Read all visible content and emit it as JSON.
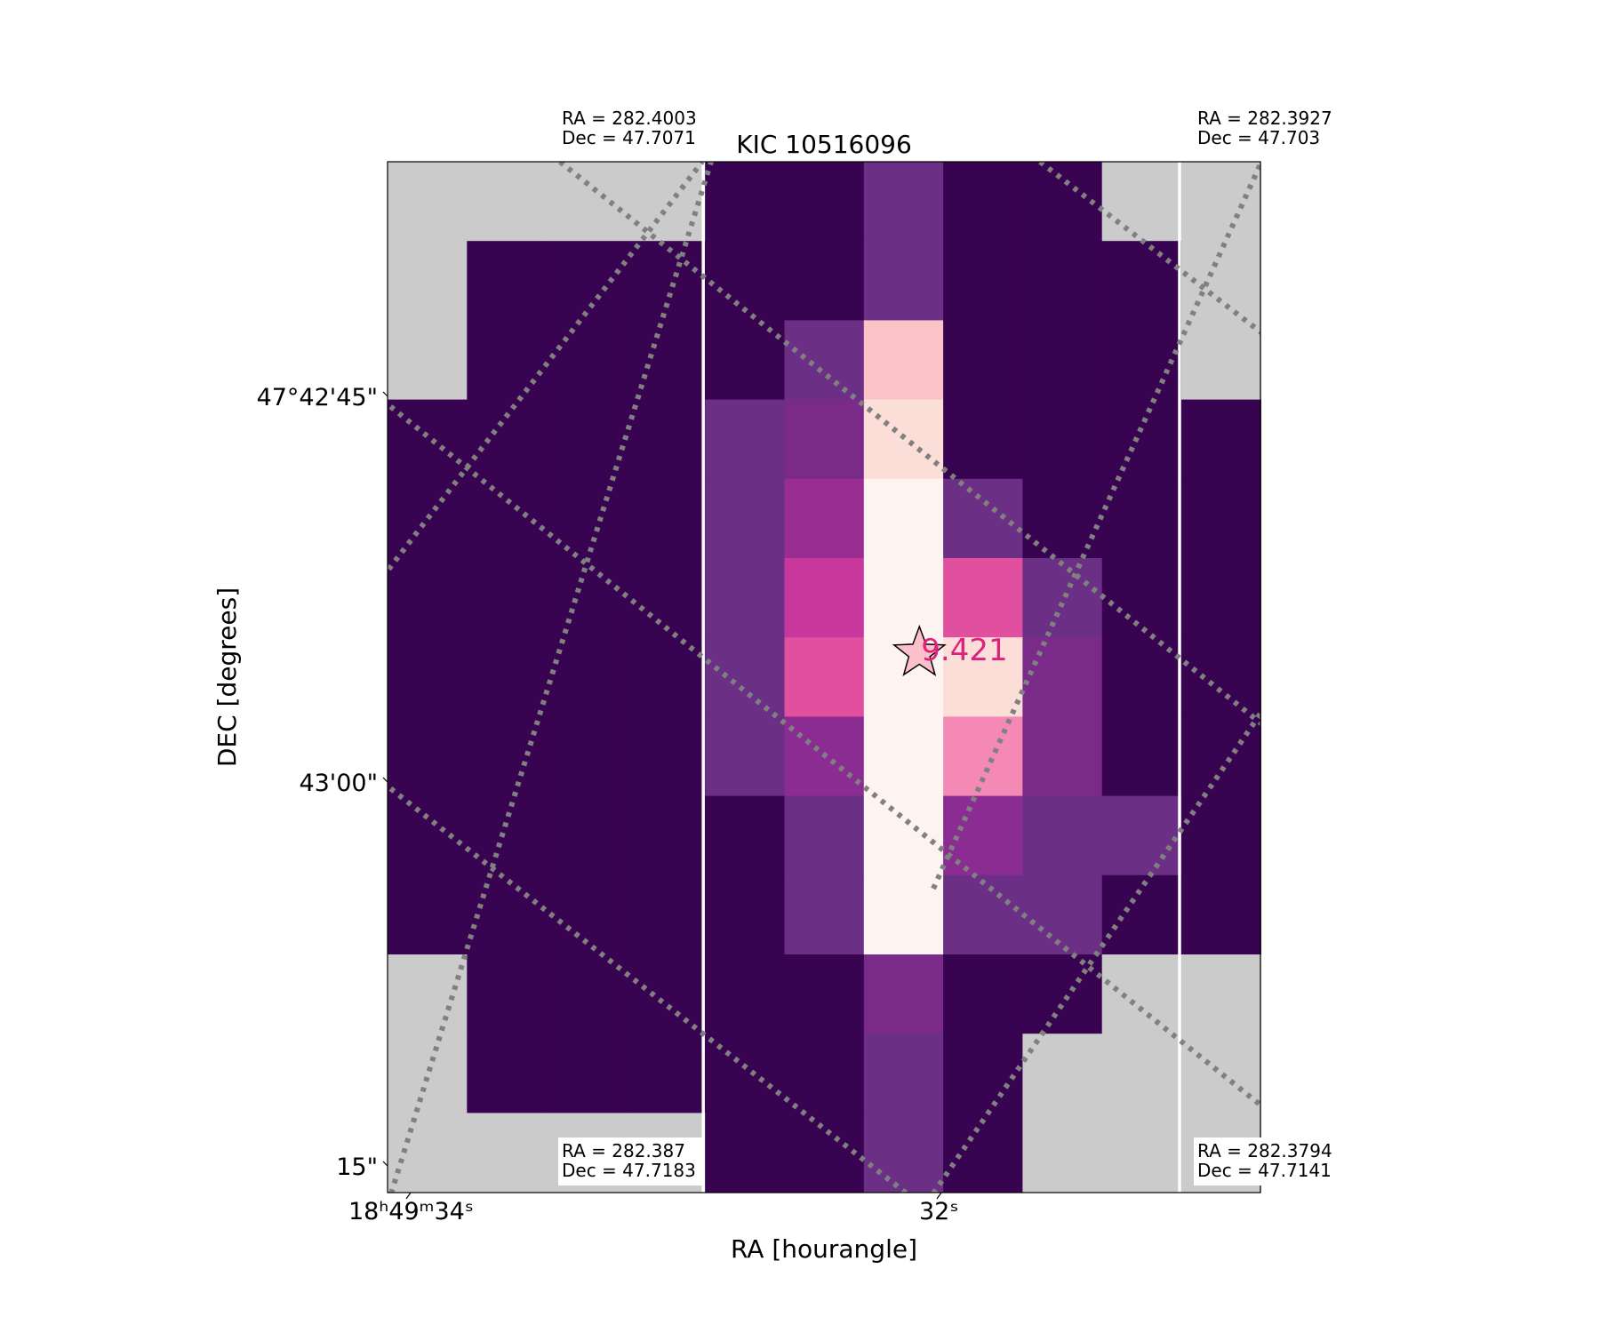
{
  "chart_data": {
    "type": "heatmap",
    "title": "KIC 10516096",
    "xlabel": "RA [hourangle]",
    "ylabel": "DEC [degrees]",
    "x_ticks": [
      {
        "label": "18ʰ49ᵐ34ˢ",
        "ra_hours": 18.82611
      },
      {
        "label": "32ˢ",
        "ra_hours": 18.82556
      }
    ],
    "y_ticks": [
      {
        "label": "47°42'45\"",
        "dec_deg": 47.7125
      },
      {
        "label": "43'00\"",
        "dec_deg": 47.71667
      },
      {
        "label": "15\"",
        "dec_deg": 47.72083
      }
    ],
    "corner_labels": [
      {
        "ra_label": "RA = 282.4003",
        "dec_label": "Dec = 47.7071"
      },
      {
        "ra_label": "RA = 282.3927",
        "dec_label": "Dec = 47.703"
      },
      {
        "ra_label": "RA = 282.387",
        "dec_label": "Dec = 47.7183"
      },
      {
        "ra_label": "RA = 282.3794",
        "dec_label": "Dec = 47.7141"
      }
    ],
    "target": {
      "symbol": "star",
      "magnitude_label": "9.421",
      "col": 6.7,
      "row": 6.2
    },
    "pixel_grid": {
      "cols": 11,
      "rows": 13,
      "levels": [
        [
          -1,
          -1,
          -1,
          -1,
          0,
          0,
          3,
          0,
          0,
          -1,
          -1
        ],
        [
          -1,
          0,
          0,
          0,
          0,
          0,
          3,
          0,
          0,
          0,
          -1
        ],
        [
          -1,
          0,
          0,
          0,
          0,
          3,
          10,
          0,
          0,
          0,
          -1
        ],
        [
          0,
          0,
          0,
          0,
          3,
          4,
          11,
          0,
          0,
          0,
          0
        ],
        [
          0,
          0,
          0,
          0,
          3,
          6,
          12,
          3,
          0,
          0,
          0
        ],
        [
          0,
          0,
          0,
          0,
          3,
          7,
          12,
          8,
          3,
          0,
          0
        ],
        [
          0,
          0,
          0,
          0,
          3,
          8,
          12,
          11,
          4,
          0,
          0
        ],
        [
          0,
          0,
          0,
          0,
          3,
          5,
          12,
          9,
          4,
          0,
          0
        ],
        [
          0,
          0,
          0,
          0,
          0,
          3,
          12,
          5,
          3,
          3,
          0
        ],
        [
          0,
          0,
          0,
          0,
          0,
          3,
          12,
          3,
          3,
          0,
          0
        ],
        [
          -1,
          0,
          0,
          0,
          0,
          0,
          4,
          0,
          0,
          -1,
          -1
        ],
        [
          -1,
          0,
          0,
          0,
          0,
          0,
          3,
          0,
          -1,
          -1,
          -1
        ],
        [
          -1,
          -1,
          -1,
          -1,
          0,
          0,
          3,
          0,
          -1,
          -1,
          -1
        ]
      ]
    },
    "colors": {
      "no_data": "#cbcbcb",
      "palette": [
        "#380350",
        "#4a0c5d",
        "#5b1766",
        "#6b2f86",
        "#7a2b8a",
        "#8a2c92",
        "#9a2d92",
        "#c8389c",
        "#e1509f",
        "#f589b6",
        "#fbc3c8",
        "#fcded9",
        "#fdf3f0"
      ],
      "grid_line": "#ffffff",
      "dotted_line": "#808080",
      "star_fill": "#fcc0cb",
      "magnitude_text": "#e0207a"
    }
  }
}
